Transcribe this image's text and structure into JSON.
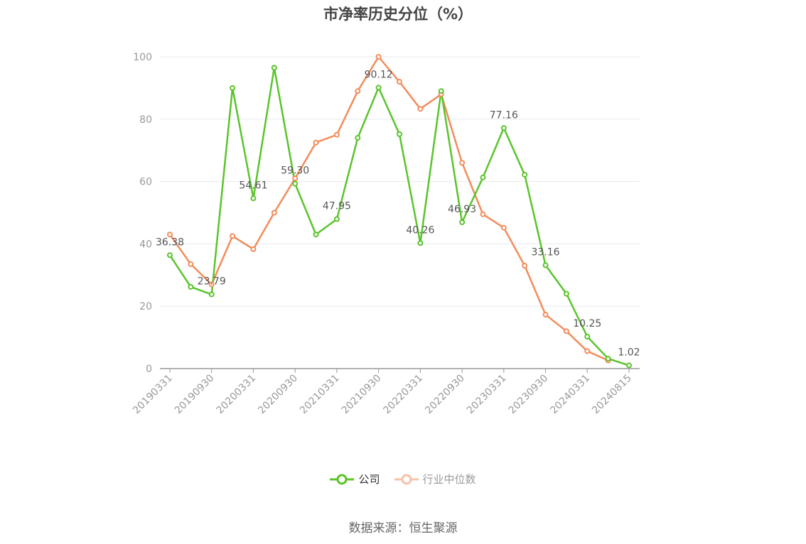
{
  "chart_data": {
    "type": "line",
    "title": "市净率历史分位（%）",
    "xlabel": "",
    "ylabel": "",
    "ylim": [
      0,
      100
    ],
    "yticks": [
      0,
      20,
      40,
      60,
      80,
      100
    ],
    "x": [
      "20190331",
      "20190630",
      "20190930",
      "20191231",
      "20200331",
      "20200630",
      "20200930",
      "20201231",
      "20210331",
      "20210630",
      "20210930",
      "20211231",
      "20220331",
      "20220630",
      "20220930",
      "20221231",
      "20230331",
      "20230630",
      "20230930",
      "20231231",
      "20240331",
      "20240630",
      "20240815"
    ],
    "xtick_labels": [
      "20190331",
      "20190930",
      "20200331",
      "20200930",
      "20210331",
      "20210930",
      "20220331",
      "20220930",
      "20230331",
      "20230930",
      "20240331",
      "20240815"
    ],
    "xtick_index": [
      0,
      2,
      4,
      6,
      8,
      10,
      12,
      14,
      16,
      18,
      20,
      22
    ],
    "grid": true,
    "legend_position": "bottom",
    "series": [
      {
        "name": "公司",
        "color": "#5ac42b",
        "values": [
          36.38,
          26.2,
          23.79,
          90.0,
          54.61,
          96.5,
          59.3,
          43.0,
          47.95,
          74.0,
          90.12,
          75.2,
          40.26,
          89.0,
          46.93,
          61.3,
          77.16,
          62.2,
          33.16,
          24.0,
          10.25,
          3.2,
          1.02
        ],
        "labels": [
          "36.38",
          null,
          "23.79",
          null,
          "54.61",
          null,
          "59.30",
          null,
          "47.95",
          null,
          "90.12",
          null,
          "40.26",
          null,
          "46.93",
          null,
          "77.16",
          null,
          "33.16",
          null,
          "10.25",
          null,
          "1.02"
        ]
      },
      {
        "name": "行业中位数",
        "color": "#f28c5b",
        "values": [
          43.0,
          33.5,
          27.0,
          42.5,
          38.3,
          50.0,
          61.0,
          72.5,
          75.0,
          89.0,
          100.0,
          92.0,
          83.3,
          88.0,
          66.0,
          49.5,
          45.2,
          33.0,
          17.3,
          12.0,
          5.6,
          2.6,
          null
        ]
      }
    ]
  },
  "footer": {
    "source": "数据来源：恒生聚源"
  }
}
